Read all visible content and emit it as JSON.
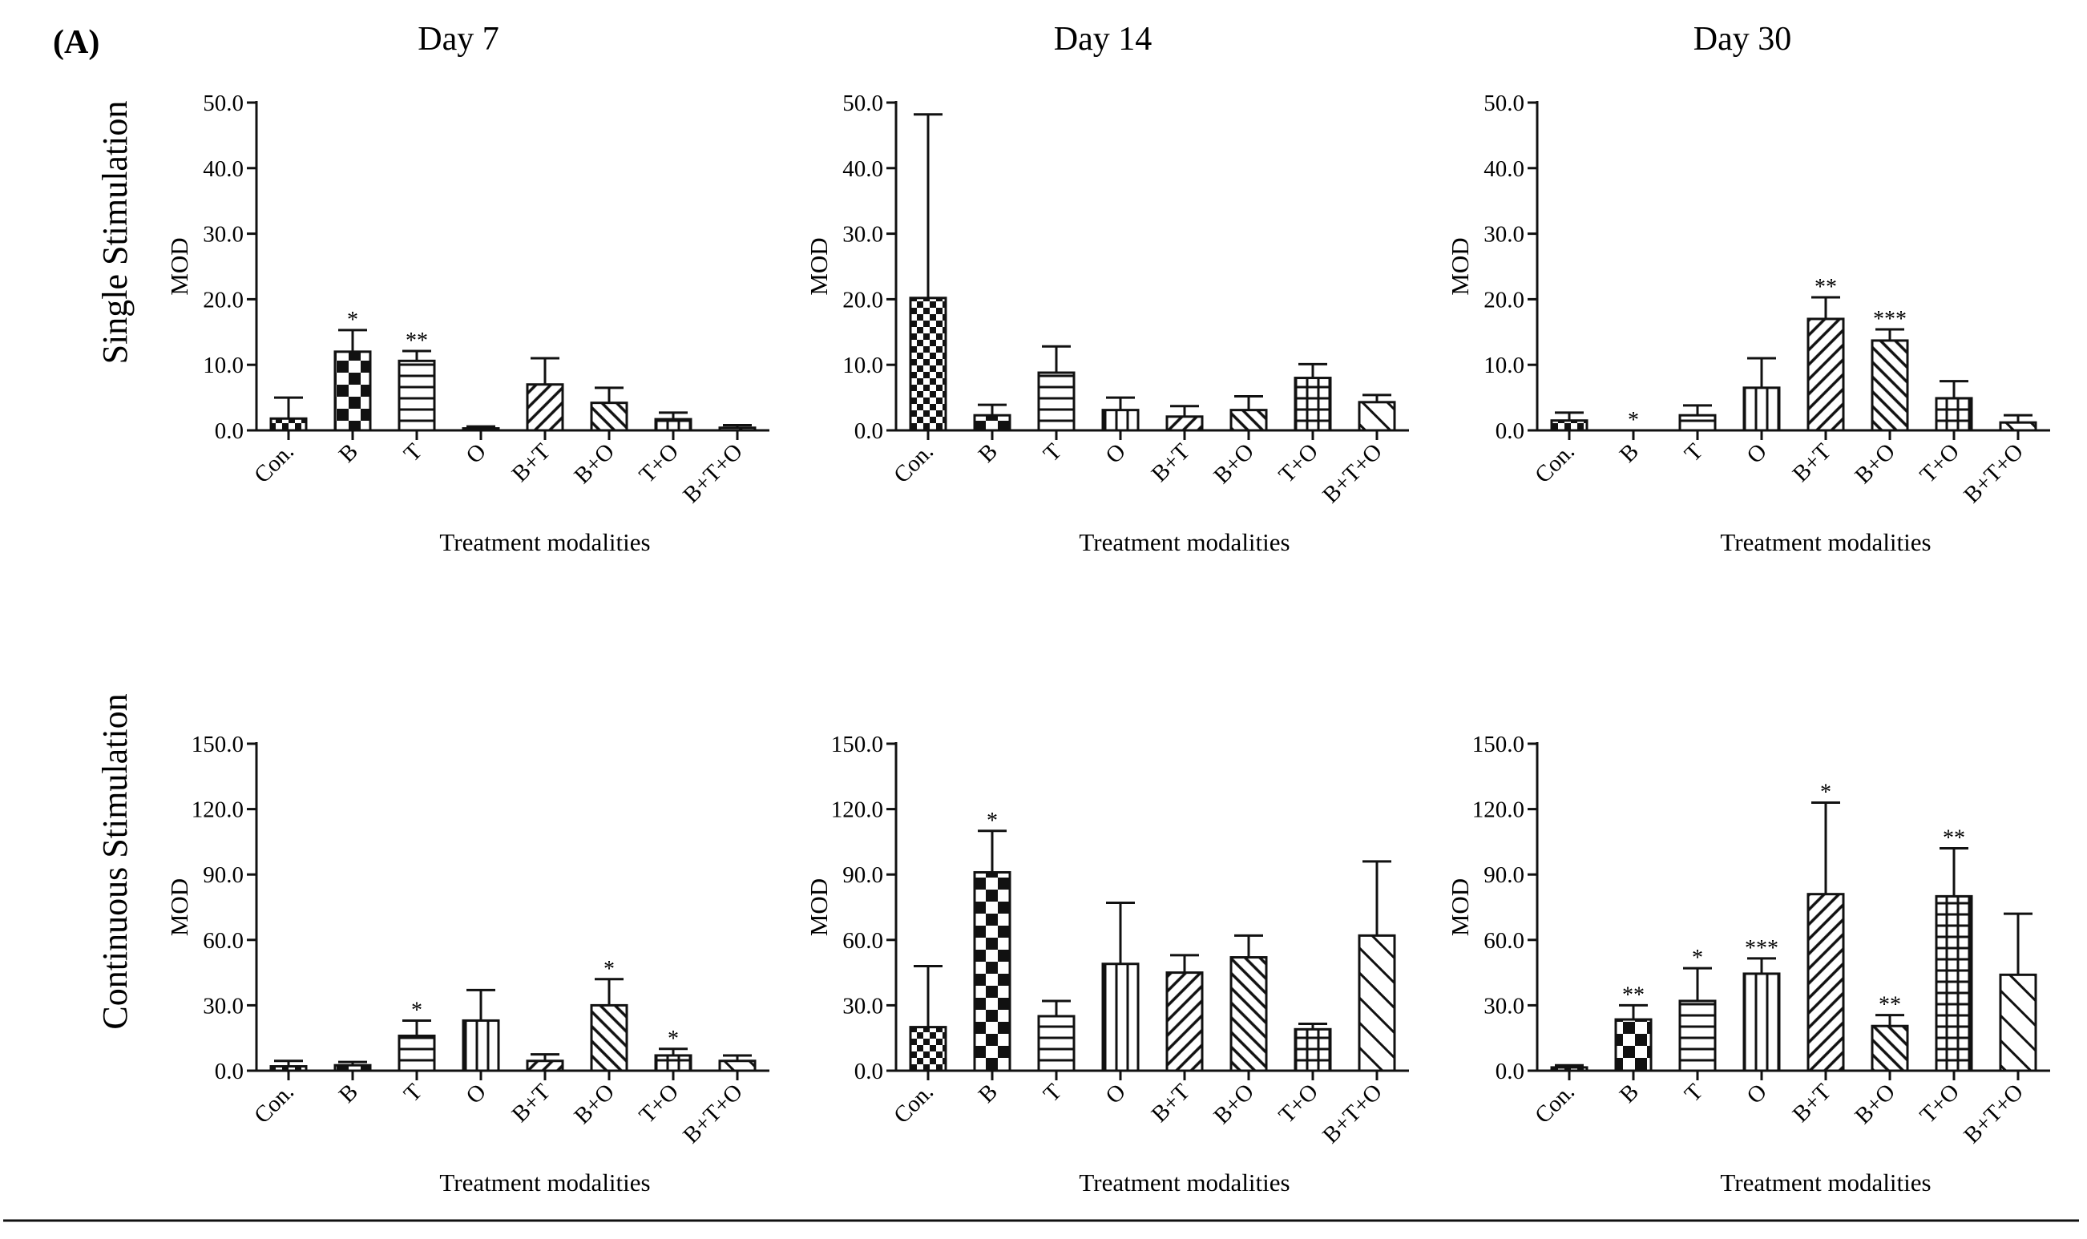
{
  "figure": {
    "panel_label": "(A)",
    "column_titles": [
      "Day 7",
      "Day 14",
      "Day 30"
    ],
    "row_titles": [
      "Single Stimulation",
      "Continuous Stimulation"
    ]
  },
  "colors": {
    "ink": "#111111",
    "background": "#ffffff"
  },
  "chart_data": [
    {
      "type": "bar",
      "row": 0,
      "col": 0,
      "title": "Day 7",
      "xlabel": "Treatment modalities",
      "ylabel": "MOD",
      "categories": [
        "Con.",
        "B",
        "T",
        "O",
        "B+T",
        "B+O",
        "T+O",
        "B+T+O"
      ],
      "yticks": [
        "0.0",
        "10.0",
        "20.0",
        "30.0",
        "40.0",
        "50.0"
      ],
      "ylim": [
        0,
        50
      ],
      "values": [
        1.8,
        12.0,
        10.6,
        0.3,
        7.0,
        4.2,
        1.7,
        0.4
      ],
      "errors": [
        3.2,
        3.3,
        1.5,
        0.3,
        4.0,
        2.3,
        1.0,
        0.4
      ],
      "significance": [
        "",
        "*",
        "**",
        "",
        "",
        "",
        "",
        ""
      ]
    },
    {
      "type": "bar",
      "row": 0,
      "col": 1,
      "title": "Day 14",
      "xlabel": "Treatment modalities",
      "ylabel": "MOD",
      "categories": [
        "Con.",
        "B",
        "T",
        "O",
        "B+T",
        "B+O",
        "T+O",
        "B+T+O"
      ],
      "yticks": [
        "0.0",
        "10.0",
        "20.0",
        "30.0",
        "40.0",
        "50.0"
      ],
      "ylim": [
        0,
        50
      ],
      "values": [
        20.2,
        2.3,
        8.8,
        3.1,
        2.1,
        3.1,
        8.0,
        4.3
      ],
      "errors": [
        28.0,
        1.6,
        4.0,
        1.9,
        1.6,
        2.1,
        2.1,
        1.1
      ],
      "significance": [
        "",
        "",
        "",
        "",
        "",
        "",
        "",
        ""
      ]
    },
    {
      "type": "bar",
      "row": 0,
      "col": 2,
      "title": "Day 30",
      "xlabel": "Treatment modalities",
      "ylabel": "MOD",
      "categories": [
        "Con.",
        "B",
        "T",
        "O",
        "B+T",
        "B+O",
        "T+O",
        "B+T+O"
      ],
      "yticks": [
        "0.0",
        "10.0",
        "20.0",
        "30.0",
        "40.0",
        "50.0"
      ],
      "ylim": [
        0,
        50
      ],
      "values": [
        1.5,
        0.0,
        2.3,
        6.5,
        17.0,
        13.7,
        4.9,
        1.2
      ],
      "errors": [
        1.2,
        0.0,
        1.5,
        4.5,
        3.3,
        1.7,
        2.6,
        1.1
      ],
      "significance": [
        "",
        "*",
        "",
        "",
        "**",
        "***",
        "",
        ""
      ]
    },
    {
      "type": "bar",
      "row": 1,
      "col": 0,
      "title": "Day 7",
      "xlabel": "Treatment modalities",
      "ylabel": "MOD",
      "categories": [
        "Con.",
        "B",
        "T",
        "O",
        "B+T",
        "B+O",
        "T+O",
        "B+T+O"
      ],
      "yticks": [
        "0.0",
        "30.0",
        "60.0",
        "90.0",
        "120.0",
        "150.0"
      ],
      "ylim": [
        0,
        150
      ],
      "values": [
        2.0,
        2.5,
        16.0,
        23.0,
        4.5,
        30.0,
        7.0,
        4.5
      ],
      "errors": [
        2.5,
        1.5,
        7.0,
        14.0,
        3.0,
        12.0,
        3.0,
        2.5
      ],
      "significance": [
        "",
        "",
        "*",
        "",
        "",
        "*",
        "*",
        ""
      ]
    },
    {
      "type": "bar",
      "row": 1,
      "col": 1,
      "title": "Day 14",
      "xlabel": "Treatment modalities",
      "ylabel": "MOD",
      "categories": [
        "Con.",
        "B",
        "T",
        "O",
        "B+T",
        "B+O",
        "T+O",
        "B+T+O"
      ],
      "yticks": [
        "0.0",
        "30.0",
        "60.0",
        "90.0",
        "120.0",
        "150.0"
      ],
      "ylim": [
        0,
        150
      ],
      "values": [
        20.0,
        91.0,
        25.0,
        49.0,
        45.0,
        52.0,
        19.0,
        62.0
      ],
      "errors": [
        28.0,
        19.0,
        7.0,
        28.0,
        8.0,
        10.0,
        2.5,
        34.0
      ],
      "significance": [
        "",
        "*",
        "",
        "",
        "",
        "",
        "",
        ""
      ]
    },
    {
      "type": "bar",
      "row": 1,
      "col": 2,
      "title": "Day 30",
      "xlabel": "Treatment modalities",
      "ylabel": "MOD",
      "categories": [
        "Con.",
        "B",
        "T",
        "O",
        "B+T",
        "B+O",
        "T+O",
        "B+T+O"
      ],
      "yticks": [
        "0.0",
        "30.0",
        "60.0",
        "90.0",
        "120.0",
        "150.0"
      ],
      "ylim": [
        0,
        150
      ],
      "values": [
        1.5,
        23.5,
        32.0,
        44.5,
        81.0,
        20.5,
        80.0,
        44.0
      ],
      "errors": [
        1.0,
        6.5,
        15.0,
        7.0,
        42.0,
        5.0,
        22.0,
        28.0
      ],
      "significance": [
        "",
        "**",
        "*",
        "***",
        "*",
        "**",
        "**",
        ""
      ]
    }
  ]
}
